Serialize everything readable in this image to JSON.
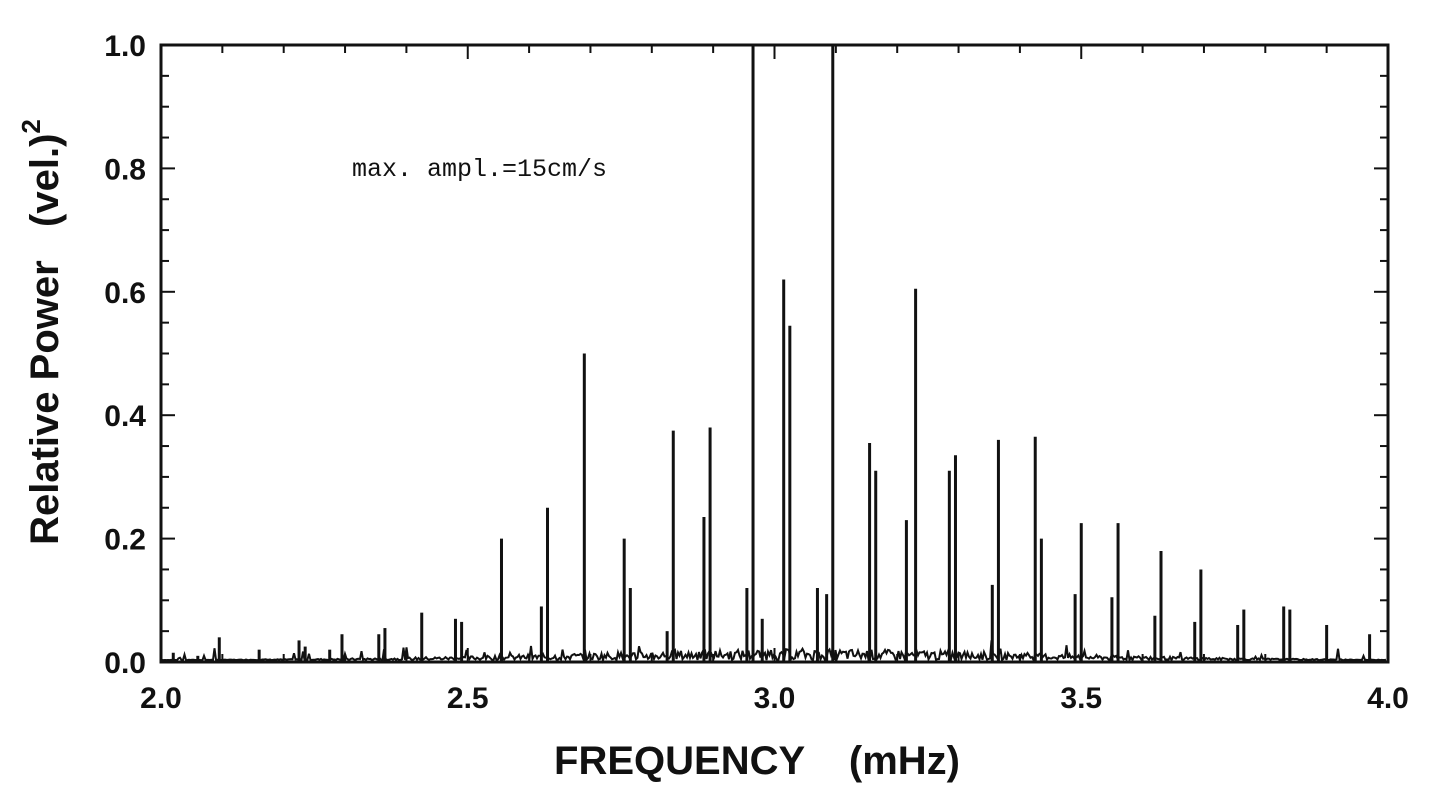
{
  "chart_data": {
    "type": "line",
    "xlabel": "FREQUENCY    (mHz)",
    "ylabel": "Relative Power   (vel.)",
    "ylabel_superscript": "2",
    "xlim": [
      2.0,
      4.0
    ],
    "ylim": [
      0.0,
      1.0
    ],
    "xticks": [
      "2.0",
      "2.5",
      "3.0",
      "3.5",
      "4.0"
    ],
    "yticks": [
      "0.0",
      "0.2",
      "0.4",
      "0.6",
      "0.8",
      "1.0"
    ],
    "annotation": "max. ampl.=15cm/s",
    "grid": false,
    "series": [
      {
        "x": [
          2.02,
          2.06,
          2.095,
          2.16,
          2.225,
          2.235,
          2.275,
          2.295,
          2.355,
          2.365,
          2.425,
          2.48,
          2.49,
          2.555,
          2.62,
          2.63,
          2.69,
          2.755,
          2.765,
          2.825,
          2.835,
          2.885,
          2.895,
          2.955,
          2.965,
          2.98,
          3.015,
          3.025,
          3.07,
          3.085,
          3.095,
          3.155,
          3.165,
          3.215,
          3.23,
          3.285,
          3.295,
          3.355,
          3.365,
          3.425,
          3.435,
          3.49,
          3.5,
          3.55,
          3.56,
          3.62,
          3.63,
          3.685,
          3.695,
          3.755,
          3.765,
          3.83,
          3.84,
          3.9,
          3.97
        ],
        "y": [
          0.015,
          0.01,
          0.04,
          0.02,
          0.035,
          0.025,
          0.02,
          0.045,
          0.045,
          0.055,
          0.08,
          0.07,
          0.065,
          0.2,
          0.09,
          0.25,
          0.5,
          0.2,
          0.12,
          0.05,
          0.375,
          0.235,
          0.38,
          0.12,
          1.0,
          0.07,
          0.62,
          0.545,
          0.12,
          0.11,
          1.0,
          0.355,
          0.31,
          0.23,
          0.605,
          0.31,
          0.335,
          0.125,
          0.36,
          0.365,
          0.2,
          0.11,
          0.225,
          0.105,
          0.225,
          0.075,
          0.18,
          0.065,
          0.15,
          0.06,
          0.085,
          0.09,
          0.085,
          0.06,
          0.045
        ]
      }
    ]
  }
}
